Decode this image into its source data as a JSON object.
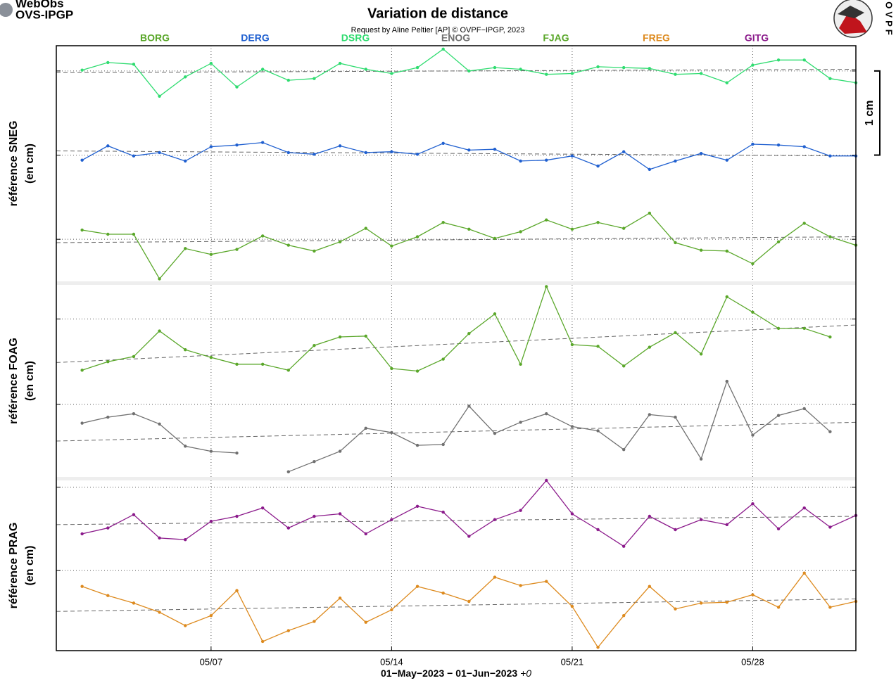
{
  "header": {
    "logo": [
      "WebObs",
      "OVS-IPGP"
    ],
    "title": "Variation de distance",
    "subtitle": "Request by Aline Peltier [AP] © OVPF−IPGP, 2023",
    "side_logo": "OVPF",
    "xlabel": "01−May−2023 − 01−Jun−2023",
    "timezone": "+0"
  },
  "chart_data": [
    {
      "type": "line",
      "ylabel": [
        "référence SNEG",
        "(en cm)"
      ],
      "x": [
        "05/02",
        "05/03",
        "05/04",
        "05/05",
        "05/06",
        "05/07",
        "05/08",
        "05/09",
        "05/10",
        "05/11",
        "05/12",
        "05/13",
        "05/14",
        "05/15",
        "05/16",
        "05/17",
        "05/18",
        "05/19",
        "05/20",
        "05/21",
        "05/22",
        "05/23",
        "05/24",
        "05/25",
        "05/26",
        "05/27",
        "05/28",
        "05/29",
        "05/30",
        "05/31",
        "06/01"
      ],
      "xlim": [
        "05/01",
        "06/01"
      ],
      "ylim": [
        -0.5,
        2.3
      ],
      "yticks": [
        0,
        1,
        2
      ],
      "scale_bar": {
        "value": 1,
        "label": "1 cm"
      },
      "series": [
        {
          "name": "BORG",
          "color": "#5aa72a",
          "values": [
            0.11,
            0.06,
            0.06,
            -0.47,
            -0.11,
            -0.18,
            -0.12,
            0.04,
            -0.07,
            -0.14,
            -0.03,
            0.13,
            -0.08,
            0.03,
            0.2,
            0.12,
            0.01,
            0.09,
            0.23,
            0.12,
            0.2,
            0.13,
            0.31,
            -0.04,
            -0.13,
            -0.14,
            -0.29,
            -0.03,
            0.19,
            0.03,
            -0.07
          ],
          "trend": [
            -0.04,
            0.03
          ]
        },
        {
          "name": "DERG",
          "color": "#2060d0",
          "values": [
            0.94,
            1.11,
            0.99,
            1.03,
            0.93,
            1.1,
            1.12,
            1.15,
            1.03,
            1.01,
            1.11,
            1.03,
            1.04,
            1.01,
            1.14,
            1.06,
            1.07,
            0.93,
            0.94,
            0.99,
            0.87,
            1.04,
            0.83,
            0.93,
            1.02,
            0.94,
            1.13,
            1.12,
            1.1,
            0.99,
            0.99
          ],
          "trend": [
            1.05,
            0.99
          ]
        },
        {
          "name": "DSRG",
          "color": "#2fdc70",
          "values": [
            2.01,
            2.1,
            2.08,
            1.7,
            1.93,
            2.09,
            1.81,
            2.02,
            1.89,
            1.91,
            2.09,
            2.02,
            1.97,
            2.04,
            2.26,
            2.0,
            2.04,
            2.02,
            1.96,
            1.97,
            2.05,
            2.04,
            2.03,
            1.96,
            1.97,
            1.86,
            2.07,
            2.13,
            2.13,
            1.91,
            1.86
          ],
          "trend": [
            1.98,
            2.02
          ]
        }
      ]
    },
    {
      "type": "line",
      "ylabel": [
        "référence FOAG",
        "(en cm)"
      ],
      "x": [
        "05/02",
        "05/03",
        "05/04",
        "05/05",
        "05/06",
        "05/07",
        "05/08",
        "05/09",
        "05/10",
        "05/11",
        "05/12",
        "05/13",
        "05/14",
        "05/15",
        "05/16",
        "05/17",
        "05/18",
        "05/19",
        "05/20",
        "05/21",
        "05/22",
        "05/23",
        "05/24",
        "05/25",
        "05/26",
        "05/27",
        "05/28",
        "05/29",
        "05/30",
        "05/31",
        "06/01"
      ],
      "xlim": [
        "05/01",
        "06/01"
      ],
      "ylim": [
        -0.85,
        1.4
      ],
      "yticks": [
        0,
        1
      ],
      "series": [
        {
          "name": "ENOG",
          "color": "#707070",
          "values": [
            -0.22,
            -0.15,
            -0.11,
            -0.23,
            -0.49,
            -0.55,
            -0.57,
            null,
            -0.79,
            -0.67,
            -0.55,
            -0.28,
            -0.33,
            -0.48,
            -0.47,
            -0.02,
            -0.34,
            -0.21,
            -0.11,
            -0.26,
            -0.31,
            -0.53,
            -0.12,
            -0.15,
            -0.64,
            0.27,
            -0.36,
            -0.13,
            -0.05,
            -0.32,
            null
          ],
          "trend": [
            -0.43,
            -0.21
          ]
        },
        {
          "name": "FJAG",
          "color": "#5aa72a",
          "values": [
            0.4,
            0.5,
            0.56,
            0.86,
            0.64,
            0.55,
            0.47,
            0.47,
            0.4,
            0.69,
            0.79,
            0.8,
            0.42,
            0.39,
            0.53,
            0.83,
            1.06,
            0.47,
            1.38,
            0.7,
            0.68,
            0.45,
            0.67,
            0.84,
            0.59,
            1.26,
            1.08,
            0.89,
            0.89,
            0.79,
            null
          ],
          "trend": [
            0.49,
            0.93
          ]
        }
      ]
    },
    {
      "type": "line",
      "ylabel": [
        "référence PRAG",
        "(en cm)"
      ],
      "x": [
        "05/02",
        "05/03",
        "05/04",
        "05/05",
        "05/06",
        "05/07",
        "05/08",
        "05/09",
        "05/10",
        "05/11",
        "05/12",
        "05/13",
        "05/14",
        "05/15",
        "05/16",
        "05/17",
        "05/18",
        "05/19",
        "05/20",
        "05/21",
        "05/22",
        "05/23",
        "05/24",
        "05/25",
        "05/26",
        "05/27",
        "05/28",
        "05/29",
        "05/30",
        "05/31",
        "06/01"
      ],
      "xlim": [
        "05/01",
        "06/01"
      ],
      "ylim": [
        -0.96,
        1.08
      ],
      "yticks": [
        0,
        1
      ],
      "xticks": [
        "05/07",
        "05/14",
        "05/21",
        "05/28"
      ],
      "series": [
        {
          "name": "FREG",
          "color": "#dd8a1e",
          "values": [
            -0.19,
            -0.3,
            -0.39,
            -0.5,
            -0.66,
            -0.54,
            -0.24,
            -0.85,
            -0.72,
            -0.61,
            -0.33,
            -0.62,
            -0.47,
            -0.19,
            -0.27,
            -0.37,
            -0.08,
            -0.18,
            -0.13,
            -0.43,
            -0.92,
            -0.54,
            -0.19,
            -0.46,
            -0.39,
            -0.38,
            -0.29,
            -0.44,
            -0.03,
            -0.44,
            -0.37
          ],
          "trend": [
            -0.49,
            -0.34
          ]
        },
        {
          "name": "GITG",
          "color": "#8b1a8b",
          "values": [
            0.44,
            0.51,
            0.67,
            0.39,
            0.37,
            0.59,
            0.65,
            0.75,
            0.51,
            0.65,
            0.68,
            0.44,
            0.61,
            0.77,
            0.7,
            0.41,
            0.61,
            0.72,
            1.08,
            0.68,
            0.49,
            0.29,
            0.65,
            0.49,
            0.61,
            0.55,
            0.8,
            0.5,
            0.75,
            0.52,
            0.66
          ],
          "trend": [
            0.55,
            0.65
          ]
        }
      ]
    }
  ]
}
